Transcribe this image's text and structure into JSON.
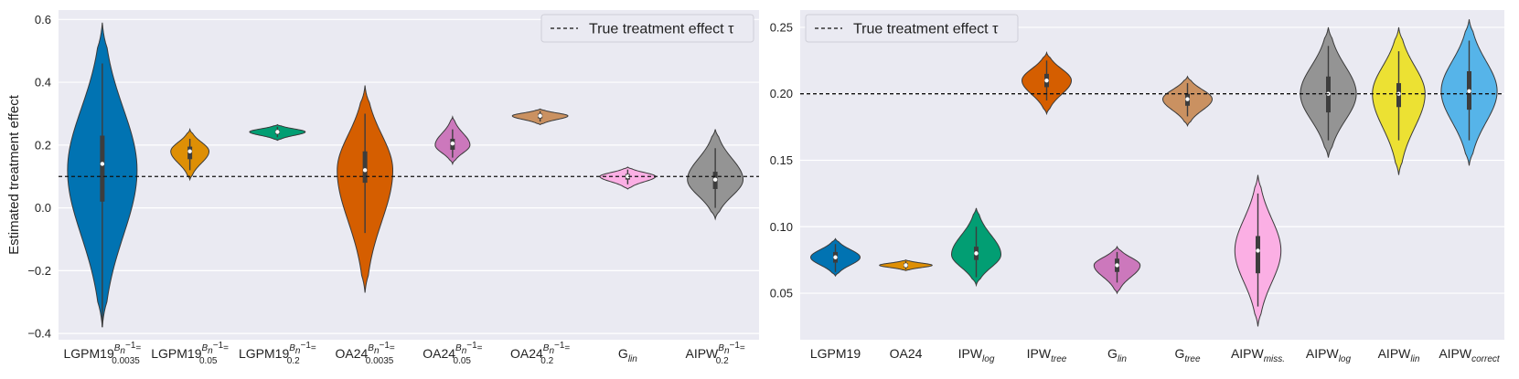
{
  "chart_data": [
    {
      "type": "violin",
      "ylabel": "Estimated treatment effect",
      "ylim": [
        -0.42,
        0.63
      ],
      "yticks": [
        -0.4,
        -0.2,
        0.0,
        0.2,
        0.4,
        0.6
      ],
      "ytick_labels": [
        "−0.4",
        "−0.2",
        "0.0",
        "0.2",
        "0.4",
        "0.6"
      ],
      "reference_line": {
        "value": 0.1,
        "style": "dashed",
        "label": "True treatment effect τ"
      },
      "legend": "top-right",
      "grid": true,
      "violins": [
        {
          "base": "LGPM19",
          "sub": "0.0035",
          "sup": "B_n^{-1}=",
          "label": "LGPM19 B_n^{-1}= 0.0035",
          "color": "#0173b2",
          "min": -0.38,
          "q1": 0.02,
          "median": 0.14,
          "q3": 0.23,
          "max": 0.59,
          "whisker_low": -0.38,
          "whisker_high": 0.46,
          "mode": 0.12,
          "maxwidth": 1.0
        },
        {
          "base": "LGPM19",
          "sub": "0.05",
          "sup": "B_n^{-1}=",
          "label": "LGPM19 B_n^{-1}= 0.05",
          "color": "#de8f05",
          "min": 0.09,
          "q1": 0.155,
          "median": 0.18,
          "q3": 0.195,
          "max": 0.25,
          "whisker_low": 0.12,
          "whisker_high": 0.22,
          "mode": 0.18,
          "maxwidth": 0.55
        },
        {
          "base": "LGPM19",
          "sub": "0.2",
          "sup": "B_n^{-1}=",
          "label": "LGPM19 B_n^{-1}= 0.2",
          "color": "#029e73",
          "min": 0.215,
          "q1": 0.235,
          "median": 0.242,
          "q3": 0.248,
          "max": 0.265,
          "whisker_low": 0.225,
          "whisker_high": 0.258,
          "mode": 0.242,
          "maxwidth": 0.8
        },
        {
          "base": "OA24",
          "sub": "0.0035",
          "sup": "B_n^{-1}=",
          "label": "OA24 B_n^{-1}= 0.0035",
          "color": "#d55e00",
          "min": -0.27,
          "q1": 0.08,
          "median": 0.12,
          "q3": 0.18,
          "max": 0.39,
          "whisker_low": -0.08,
          "whisker_high": 0.3,
          "mode": 0.12,
          "maxwidth": 0.8
        },
        {
          "base": "OA24",
          "sub": "0.05",
          "sup": "B_n^{-1}=",
          "label": "OA24 B_n^{-1}= 0.05",
          "color": "#cc78bc",
          "min": 0.14,
          "q1": 0.185,
          "median": 0.205,
          "q3": 0.22,
          "max": 0.29,
          "whisker_low": 0.16,
          "whisker_high": 0.25,
          "mode": 0.2,
          "maxwidth": 0.5
        },
        {
          "base": "OA24",
          "sub": "0.2",
          "sup": "B_n^{-1}=",
          "label": "OA24 B_n^{-1}= 0.2",
          "color": "#ca9161",
          "min": 0.265,
          "q1": 0.285,
          "median": 0.293,
          "q3": 0.3,
          "max": 0.315,
          "whisker_low": 0.275,
          "whisker_high": 0.308,
          "mode": 0.293,
          "maxwidth": 0.8
        },
        {
          "base": "G",
          "sub": "lin",
          "italic_sub": true,
          "label": "G lin",
          "color": "#fbafe4",
          "min": 0.06,
          "q1": 0.09,
          "median": 0.1,
          "q3": 0.108,
          "max": 0.13,
          "whisker_low": 0.075,
          "whisker_high": 0.122,
          "mode": 0.1,
          "maxwidth": 0.8
        },
        {
          "base": "AIPW",
          "sub": "0.2",
          "sup": "B_n^{-1}=",
          "label": "AIPW B_n^{-1}= 0.2",
          "color": "#949494",
          "min": -0.035,
          "q1": 0.06,
          "median": 0.09,
          "q3": 0.115,
          "max": 0.25,
          "whisker_low": 0.0,
          "whisker_high": 0.19,
          "mode": 0.09,
          "maxwidth": 0.8
        }
      ]
    },
    {
      "type": "violin",
      "ylabel": "",
      "ylim": [
        0.015,
        0.263
      ],
      "yticks": [
        0.05,
        0.1,
        0.15,
        0.2,
        0.25
      ],
      "ytick_labels": [
        "0.05",
        "0.10",
        "0.15",
        "0.20",
        "0.25"
      ],
      "reference_line": {
        "value": 0.2,
        "style": "dashed",
        "label": "True treatment effect τ"
      },
      "legend": "top-left",
      "grid": true,
      "violins": [
        {
          "base": "LGPM19",
          "sub": "",
          "label": "LGPM19",
          "color": "#0173b2",
          "min": 0.063,
          "q1": 0.073,
          "median": 0.077,
          "q3": 0.081,
          "max": 0.091,
          "whisker_low": 0.066,
          "whisker_high": 0.087,
          "mode": 0.077,
          "maxwidth": 0.75
        },
        {
          "base": "OA24",
          "sub": "",
          "label": "OA24",
          "color": "#de8f05",
          "min": 0.067,
          "q1": 0.0695,
          "median": 0.071,
          "q3": 0.0725,
          "max": 0.075,
          "whisker_low": 0.068,
          "whisker_high": 0.074,
          "mode": 0.071,
          "maxwidth": 0.8
        },
        {
          "base": "IPW",
          "sub": "log",
          "italic_sub": true,
          "label": "IPW log",
          "color": "#029e73",
          "min": 0.056,
          "q1": 0.075,
          "median": 0.08,
          "q3": 0.085,
          "max": 0.114,
          "whisker_low": 0.062,
          "whisker_high": 0.1,
          "mode": 0.079,
          "maxwidth": 0.75
        },
        {
          "base": "IPW",
          "sub": "tree",
          "italic_sub": true,
          "label": "IPW tree",
          "color": "#d55e00",
          "min": 0.185,
          "q1": 0.205,
          "median": 0.21,
          "q3": 0.215,
          "max": 0.231,
          "whisker_low": 0.195,
          "whisker_high": 0.225,
          "mode": 0.21,
          "maxwidth": 0.75
        },
        {
          "base": "G",
          "sub": "lin",
          "italic_sub": true,
          "label": "G lin",
          "color": "#cc78bc",
          "min": 0.05,
          "q1": 0.066,
          "median": 0.071,
          "q3": 0.076,
          "max": 0.085,
          "whisker_low": 0.058,
          "whisker_high": 0.081,
          "mode": 0.071,
          "maxwidth": 0.7
        },
        {
          "base": "G",
          "sub": "tree",
          "italic_sub": true,
          "label": "G tree",
          "color": "#ca9161",
          "min": 0.176,
          "q1": 0.191,
          "median": 0.196,
          "q3": 0.2,
          "max": 0.213,
          "whisker_low": 0.183,
          "whisker_high": 0.208,
          "mode": 0.196,
          "maxwidth": 0.75
        },
        {
          "base": "AIPW",
          "sub": "miss.",
          "italic_sub": true,
          "label": "AIPW miss.",
          "color": "#fbafe4",
          "min": 0.025,
          "q1": 0.065,
          "median": 0.082,
          "q3": 0.093,
          "max": 0.139,
          "whisker_low": 0.04,
          "whisker_high": 0.125,
          "mode": 0.082,
          "maxwidth": 0.7
        },
        {
          "base": "AIPW",
          "sub": "log",
          "italic_sub": true,
          "label": "AIPW log",
          "color": "#949494",
          "min": 0.152,
          "q1": 0.186,
          "median": 0.2,
          "q3": 0.213,
          "max": 0.25,
          "whisker_low": 0.165,
          "whisker_high": 0.236,
          "mode": 0.2,
          "maxwidth": 0.85
        },
        {
          "base": "AIPW",
          "sub": "lin",
          "italic_sub": true,
          "label": "AIPW lin",
          "color": "#ece133",
          "min": 0.139,
          "q1": 0.19,
          "median": 0.2,
          "q3": 0.208,
          "max": 0.25,
          "whisker_low": 0.165,
          "whisker_high": 0.232,
          "mode": 0.2,
          "maxwidth": 0.8
        },
        {
          "base": "AIPW",
          "sub": "correct",
          "italic_sub": true,
          "label": "AIPW correct",
          "color": "#56b4e9",
          "min": 0.146,
          "q1": 0.188,
          "median": 0.202,
          "q3": 0.217,
          "max": 0.256,
          "whisker_low": 0.165,
          "whisker_high": 0.24,
          "mode": 0.202,
          "maxwidth": 0.85
        }
      ]
    }
  ]
}
